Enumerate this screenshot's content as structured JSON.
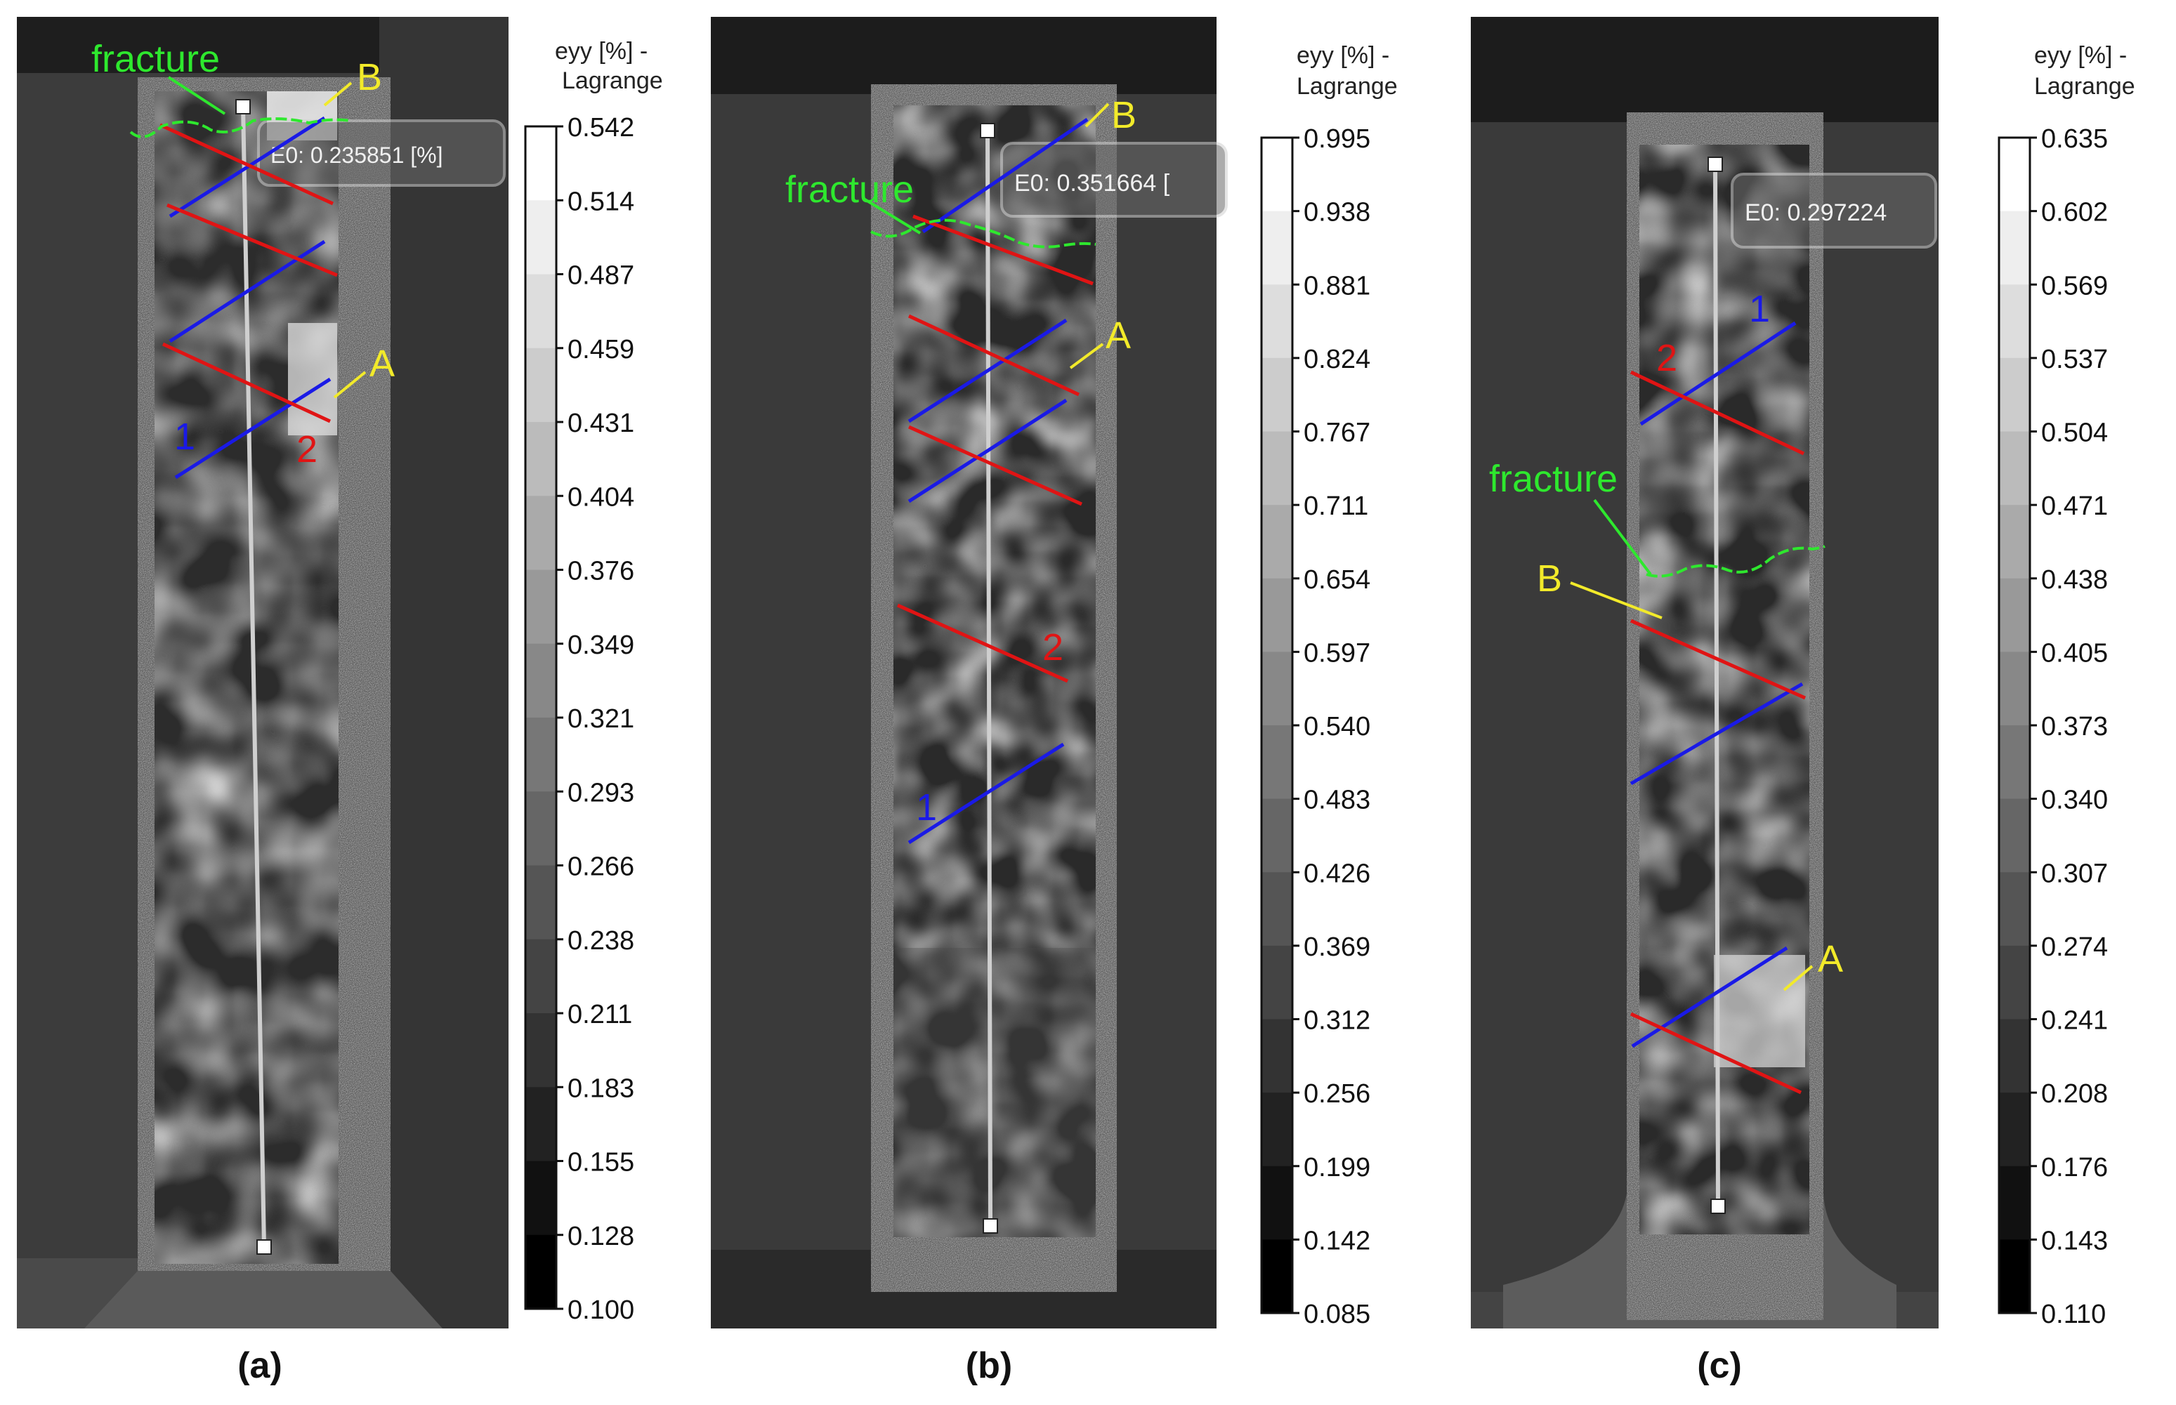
{
  "panels": [
    {
      "id": "a",
      "label": "(a)",
      "colorbar": {
        "title_line1": "eyy [%] -",
        "title_line2": "Lagrange",
        "ticks": [
          "0.542",
          "0.514",
          "0.487",
          "0.459",
          "0.431",
          "0.404",
          "0.376",
          "0.349",
          "0.321",
          "0.293",
          "0.266",
          "0.238",
          "0.211",
          "0.183",
          "0.155",
          "0.128",
          "0.100"
        ]
      },
      "readout": "E0: 0.235851 [%]",
      "annotations": {
        "fracture": "fracture",
        "A": "A",
        "B": "B",
        "line1": "1",
        "line2": "2"
      }
    },
    {
      "id": "b",
      "label": "(b)",
      "colorbar": {
        "title_line1": "eyy [%] -",
        "title_line2": "Lagrange",
        "ticks": [
          "0.995",
          "0.938",
          "0.881",
          "0.824",
          "0.767",
          "0.711",
          "0.654",
          "0.597",
          "0.540",
          "0.483",
          "0.426",
          "0.369",
          "0.312",
          "0.256",
          "0.199",
          "0.142",
          "0.085"
        ]
      },
      "readout": "E0: 0.351664 [",
      "annotations": {
        "fracture": "fracture",
        "A": "A",
        "B": "B",
        "line1": "1",
        "line2": "2"
      }
    },
    {
      "id": "c",
      "label": "(c)",
      "colorbar": {
        "title_line1": "eyy [%] -",
        "title_line2": "Lagrange",
        "ticks": [
          "0.635",
          "0.602",
          "0.569",
          "0.537",
          "0.504",
          "0.471",
          "0.438",
          "0.405",
          "0.373",
          "0.340",
          "0.307",
          "0.274",
          "0.241",
          "0.208",
          "0.176",
          "0.143",
          "0.110"
        ]
      },
      "readout": "E0: 0.297224",
      "annotations": {
        "fracture": "fracture",
        "A": "A",
        "B": "B",
        "line1": "1",
        "line2": "2"
      }
    }
  ],
  "colors": {
    "fracture": "#2ee82e",
    "marker": "#f2ea2a",
    "line_blue": "#1a1ae6",
    "line_red": "#e01414"
  }
}
